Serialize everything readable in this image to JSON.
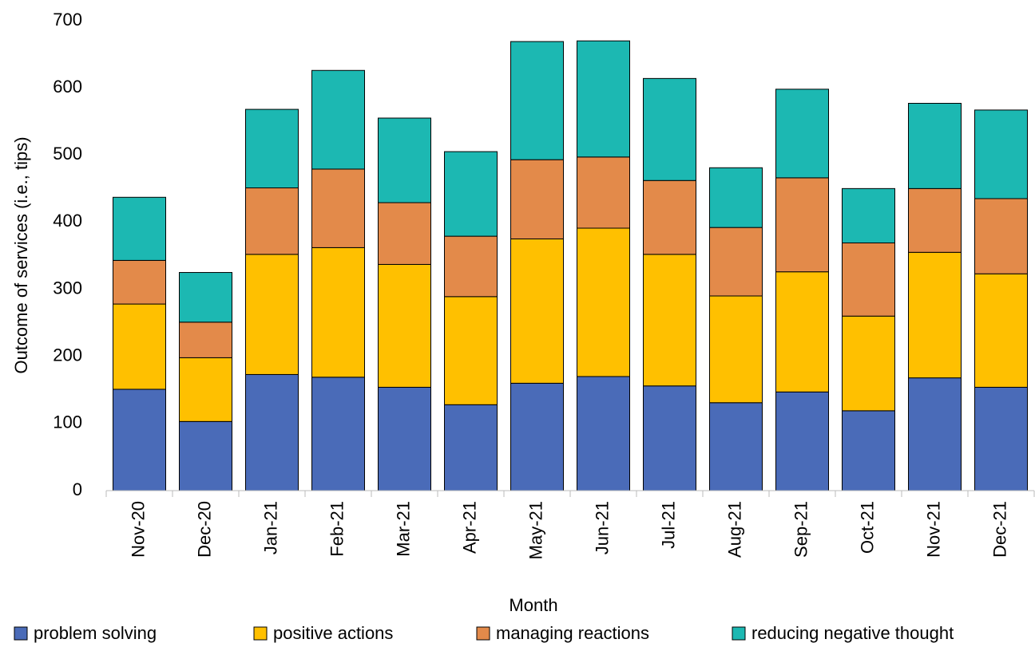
{
  "chart_data": {
    "type": "stacked_bar",
    "x_label": "Month",
    "y_label": "Outcome of services (i.e., tips)",
    "categories": [
      "Nov-20",
      "Dec-20",
      "Jan-21",
      "Feb-21",
      "Mar-21",
      "Apr-21",
      "May-21",
      "Jun-21",
      "Jul-21",
      "Aug-21",
      "Sep-21",
      "Oct-21",
      "Nov-21",
      "Dec-21"
    ],
    "series": [
      {
        "name": "problem solving",
        "color": "#4a6bb8",
        "values": [
          151,
          103,
          173,
          169,
          154,
          128,
          160,
          170,
          156,
          131,
          147,
          119,
          168,
          154
        ]
      },
      {
        "name": "positive actions",
        "color": "#ffc000",
        "values": [
          127,
          95,
          179,
          193,
          183,
          161,
          215,
          221,
          196,
          159,
          179,
          141,
          187,
          169
        ]
      },
      {
        "name": "managing reactions",
        "color": "#e38a4a",
        "values": [
          65,
          53,
          99,
          117,
          92,
          90,
          118,
          106,
          110,
          102,
          140,
          109,
          95,
          112
        ]
      },
      {
        "name": "reducing negative thought",
        "color": "#1cb8b2",
        "values": [
          94,
          74,
          117,
          147,
          126,
          126,
          176,
          173,
          152,
          89,
          132,
          81,
          127,
          132
        ]
      }
    ],
    "ylim": [
      0,
      700
    ],
    "yticks": [
      0,
      100,
      200,
      300,
      400,
      500,
      600,
      700
    ],
    "grid": false,
    "legend": "bottom"
  }
}
